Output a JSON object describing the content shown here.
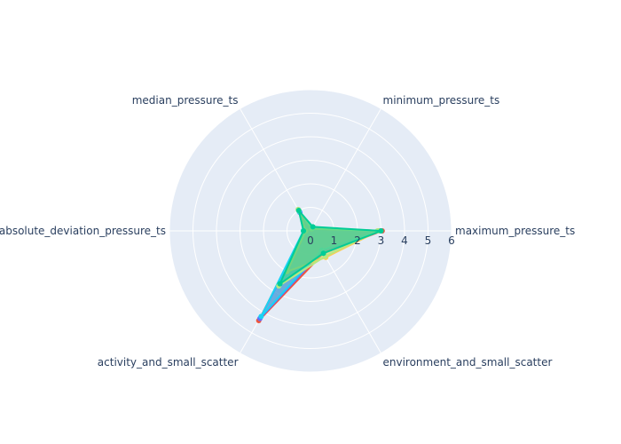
{
  "chart_data": {
    "type": "radar",
    "axes": [
      "maximum_pressure_ts",
      "minimum_pressure_ts",
      "median_pressure_ts",
      "absolute_deviation_pressure_ts",
      "activity_and_small_scatter",
      "environment_and_small_scatter"
    ],
    "radial_range": [
      0,
      6
    ],
    "radial_ticks": [
      "0",
      "1",
      "2",
      "3",
      "4",
      "5",
      "6"
    ],
    "grid": true,
    "legend": false,
    "series": [
      {
        "color": "#EF553B",
        "values": [
          3.05,
          0.15,
          1.0,
          0.25,
          4.4,
          1.1
        ]
      },
      {
        "color": "#636EFA",
        "values": [
          2.95,
          0.1,
          0.9,
          0.2,
          4.3,
          1.0
        ]
      },
      {
        "color": "#19D3F3",
        "values": [
          2.9,
          0.12,
          0.95,
          0.3,
          4.2,
          0.95
        ]
      },
      {
        "color": "#FECB52",
        "values": [
          2.9,
          0.1,
          1.0,
          0.2,
          2.0,
          1.3
        ]
      },
      {
        "color": "#B6E880",
        "values": [
          2.85,
          0.12,
          1.05,
          0.25,
          2.7,
          1.25
        ]
      },
      {
        "color": "#00CC96",
        "values": [
          3.0,
          0.2,
          1.0,
          0.3,
          2.6,
          1.1
        ]
      }
    ]
  }
}
